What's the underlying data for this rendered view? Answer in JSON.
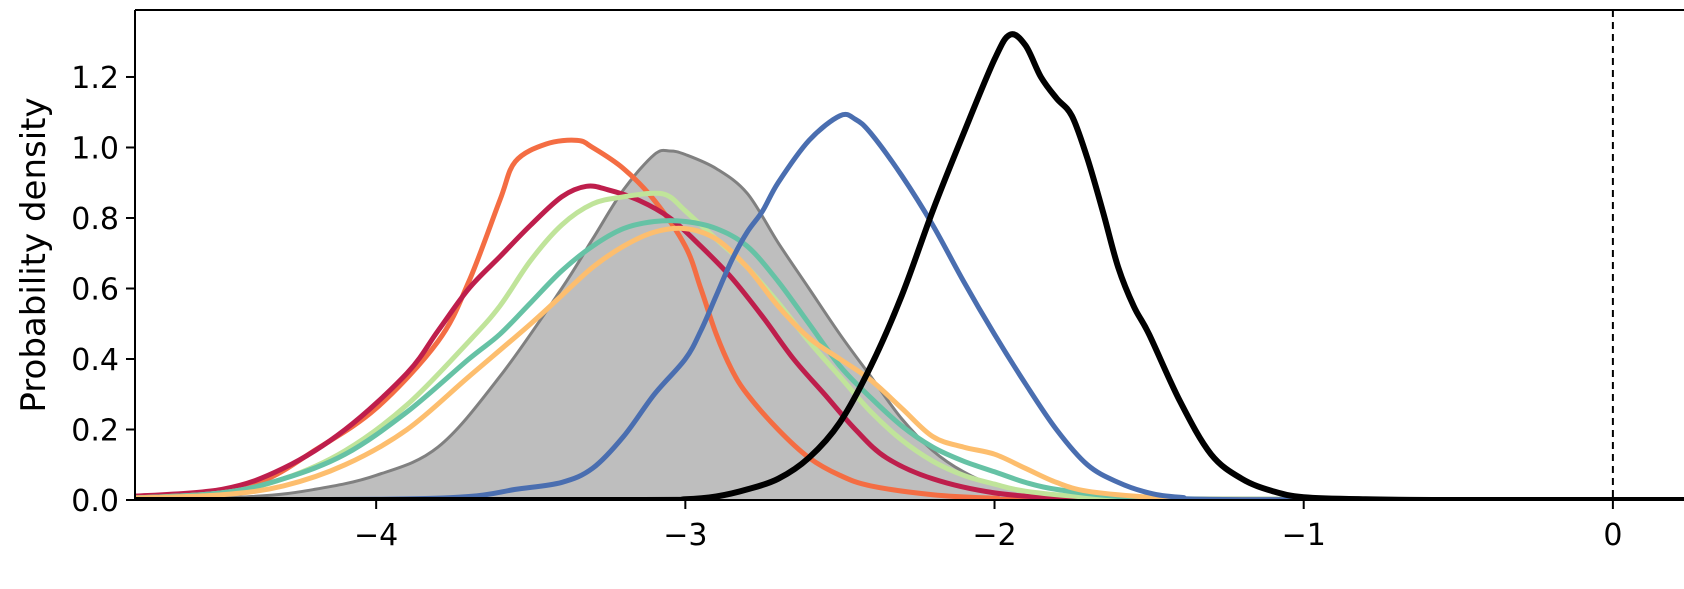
{
  "chart_data": {
    "type": "line",
    "title": "",
    "xlabel": "",
    "ylabel": "Probability density",
    "xlim": [
      -4.78,
      0.23
    ],
    "ylim": [
      0.0,
      1.39
    ],
    "x_ticks": [
      -4,
      -3,
      -2,
      -1,
      0
    ],
    "x_tick_labels": [
      "−4",
      "−3",
      "−2",
      "−1",
      "0"
    ],
    "y_ticks": [
      0.0,
      0.2,
      0.4,
      0.6,
      0.8,
      1.0,
      1.2
    ],
    "y_tick_labels": [
      "0.0",
      "0.2",
      "0.4",
      "0.6",
      "0.8",
      "1.0",
      "1.2"
    ],
    "grid": false,
    "legend": "none",
    "reference_line": {
      "x": 0,
      "style": "dashed",
      "color": "#000000"
    },
    "series": [
      {
        "style": "filled-area",
        "color": "#808080",
        "fill": "#bebebe",
        "points": [
          [
            -4.8,
            0.0
          ],
          [
            -4.4,
            0.01
          ],
          [
            -4.2,
            0.03
          ],
          [
            -4.0,
            0.07
          ],
          [
            -3.8,
            0.15
          ],
          [
            -3.6,
            0.35
          ],
          [
            -3.4,
            0.6
          ],
          [
            -3.3,
            0.74
          ],
          [
            -3.2,
            0.88
          ],
          [
            -3.1,
            0.98
          ],
          [
            -3.05,
            0.99
          ],
          [
            -3.0,
            0.98
          ],
          [
            -2.9,
            0.94
          ],
          [
            -2.8,
            0.87
          ],
          [
            -2.7,
            0.73
          ],
          [
            -2.6,
            0.6
          ],
          [
            -2.5,
            0.47
          ],
          [
            -2.4,
            0.35
          ],
          [
            -2.3,
            0.23
          ],
          [
            -2.2,
            0.14
          ],
          [
            -2.1,
            0.08
          ],
          [
            -2.0,
            0.045
          ],
          [
            -1.8,
            0.015
          ],
          [
            -1.5,
            0.002
          ],
          [
            0.23,
            0.0
          ]
        ]
      },
      {
        "style": "line",
        "color": "#f46d43",
        "points": [
          [
            -4.8,
            0.01
          ],
          [
            -4.5,
            0.02
          ],
          [
            -4.35,
            0.06
          ],
          [
            -4.2,
            0.14
          ],
          [
            -4.0,
            0.26
          ],
          [
            -3.8,
            0.45
          ],
          [
            -3.7,
            0.62
          ],
          [
            -3.6,
            0.85
          ],
          [
            -3.55,
            0.96
          ],
          [
            -3.45,
            1.01
          ],
          [
            -3.35,
            1.02
          ],
          [
            -3.3,
            1.0
          ],
          [
            -3.2,
            0.94
          ],
          [
            -3.1,
            0.85
          ],
          [
            -3.0,
            0.72
          ],
          [
            -2.95,
            0.6
          ],
          [
            -2.9,
            0.47
          ],
          [
            -2.85,
            0.37
          ],
          [
            -2.8,
            0.3
          ],
          [
            -2.7,
            0.2
          ],
          [
            -2.6,
            0.12
          ],
          [
            -2.5,
            0.07
          ],
          [
            -2.4,
            0.04
          ],
          [
            -2.2,
            0.015
          ],
          [
            -2.0,
            0.005
          ],
          [
            -1.8,
            0.001
          ],
          [
            0.23,
            0.0
          ]
        ]
      },
      {
        "style": "line",
        "color": "#be1e4c",
        "points": [
          [
            -4.8,
            0.01
          ],
          [
            -4.5,
            0.03
          ],
          [
            -4.3,
            0.09
          ],
          [
            -4.1,
            0.2
          ],
          [
            -3.9,
            0.36
          ],
          [
            -3.8,
            0.48
          ],
          [
            -3.7,
            0.6
          ],
          [
            -3.6,
            0.69
          ],
          [
            -3.5,
            0.78
          ],
          [
            -3.4,
            0.86
          ],
          [
            -3.32,
            0.89
          ],
          [
            -3.25,
            0.88
          ],
          [
            -3.15,
            0.85
          ],
          [
            -3.05,
            0.8
          ],
          [
            -2.95,
            0.72
          ],
          [
            -2.85,
            0.63
          ],
          [
            -2.75,
            0.52
          ],
          [
            -2.65,
            0.4
          ],
          [
            -2.55,
            0.3
          ],
          [
            -2.45,
            0.2
          ],
          [
            -2.35,
            0.12
          ],
          [
            -2.2,
            0.06
          ],
          [
            -2.0,
            0.02
          ],
          [
            -1.8,
            0.006
          ],
          [
            -1.6,
            0.001
          ],
          [
            0.23,
            0.0
          ]
        ]
      },
      {
        "style": "line",
        "color": "#c0e49a",
        "points": [
          [
            -4.8,
            0.005
          ],
          [
            -4.5,
            0.02
          ],
          [
            -4.3,
            0.06
          ],
          [
            -4.1,
            0.14
          ],
          [
            -3.9,
            0.27
          ],
          [
            -3.7,
            0.45
          ],
          [
            -3.6,
            0.55
          ],
          [
            -3.5,
            0.68
          ],
          [
            -3.4,
            0.78
          ],
          [
            -3.3,
            0.84
          ],
          [
            -3.2,
            0.86
          ],
          [
            -3.1,
            0.87
          ],
          [
            -3.05,
            0.86
          ],
          [
            -3.0,
            0.82
          ],
          [
            -2.9,
            0.74
          ],
          [
            -2.8,
            0.66
          ],
          [
            -2.7,
            0.56
          ],
          [
            -2.6,
            0.45
          ],
          [
            -2.5,
            0.35
          ],
          [
            -2.4,
            0.25
          ],
          [
            -2.3,
            0.17
          ],
          [
            -2.2,
            0.11
          ],
          [
            -2.1,
            0.07
          ],
          [
            -2.0,
            0.045
          ],
          [
            -1.9,
            0.025
          ],
          [
            -1.7,
            0.008
          ],
          [
            -1.5,
            0.002
          ],
          [
            0.23,
            0.0
          ]
        ]
      },
      {
        "style": "line",
        "color": "#66c2a5",
        "points": [
          [
            -4.8,
            0.005
          ],
          [
            -4.5,
            0.02
          ],
          [
            -4.3,
            0.06
          ],
          [
            -4.1,
            0.13
          ],
          [
            -3.9,
            0.25
          ],
          [
            -3.7,
            0.4
          ],
          [
            -3.6,
            0.47
          ],
          [
            -3.5,
            0.56
          ],
          [
            -3.4,
            0.65
          ],
          [
            -3.3,
            0.72
          ],
          [
            -3.2,
            0.77
          ],
          [
            -3.1,
            0.79
          ],
          [
            -3.0,
            0.79
          ],
          [
            -2.9,
            0.77
          ],
          [
            -2.8,
            0.72
          ],
          [
            -2.7,
            0.62
          ],
          [
            -2.6,
            0.5
          ],
          [
            -2.5,
            0.38
          ],
          [
            -2.4,
            0.29
          ],
          [
            -2.3,
            0.21
          ],
          [
            -2.2,
            0.15
          ],
          [
            -2.1,
            0.11
          ],
          [
            -2.0,
            0.08
          ],
          [
            -1.9,
            0.05
          ],
          [
            -1.8,
            0.03
          ],
          [
            -1.6,
            0.01
          ],
          [
            -1.4,
            0.003
          ],
          [
            0.23,
            0.0
          ]
        ]
      },
      {
        "style": "line",
        "color": "#fdbe6e",
        "points": [
          [
            -4.8,
            0.005
          ],
          [
            -4.5,
            0.015
          ],
          [
            -4.3,
            0.04
          ],
          [
            -4.1,
            0.1
          ],
          [
            -3.9,
            0.2
          ],
          [
            -3.7,
            0.35
          ],
          [
            -3.5,
            0.5
          ],
          [
            -3.4,
            0.58
          ],
          [
            -3.3,
            0.66
          ],
          [
            -3.2,
            0.72
          ],
          [
            -3.1,
            0.76
          ],
          [
            -3.0,
            0.77
          ],
          [
            -2.9,
            0.74
          ],
          [
            -2.8,
            0.66
          ],
          [
            -2.7,
            0.55
          ],
          [
            -2.6,
            0.46
          ],
          [
            -2.5,
            0.4
          ],
          [
            -2.4,
            0.34
          ],
          [
            -2.3,
            0.26
          ],
          [
            -2.2,
            0.18
          ],
          [
            -2.1,
            0.15
          ],
          [
            -2.0,
            0.13
          ],
          [
            -1.9,
            0.09
          ],
          [
            -1.8,
            0.05
          ],
          [
            -1.7,
            0.025
          ],
          [
            -1.5,
            0.008
          ],
          [
            -1.3,
            0.002
          ],
          [
            0.23,
            0.0
          ]
        ]
      },
      {
        "style": "line",
        "color": "#4a6eb0",
        "points": [
          [
            -4.8,
            0.0
          ],
          [
            -4.0,
            0.002
          ],
          [
            -3.7,
            0.01
          ],
          [
            -3.55,
            0.03
          ],
          [
            -3.4,
            0.05
          ],
          [
            -3.3,
            0.09
          ],
          [
            -3.2,
            0.18
          ],
          [
            -3.1,
            0.3
          ],
          [
            -3.0,
            0.4
          ],
          [
            -2.95,
            0.48
          ],
          [
            -2.9,
            0.58
          ],
          [
            -2.85,
            0.68
          ],
          [
            -2.8,
            0.76
          ],
          [
            -2.75,
            0.82
          ],
          [
            -2.7,
            0.9
          ],
          [
            -2.6,
            1.02
          ],
          [
            -2.5,
            1.09
          ],
          [
            -2.45,
            1.08
          ],
          [
            -2.4,
            1.04
          ],
          [
            -2.3,
            0.92
          ],
          [
            -2.2,
            0.78
          ],
          [
            -2.1,
            0.62
          ],
          [
            -2.0,
            0.47
          ],
          [
            -1.9,
            0.33
          ],
          [
            -1.8,
            0.2
          ],
          [
            -1.7,
            0.1
          ],
          [
            -1.6,
            0.05
          ],
          [
            -1.5,
            0.02
          ],
          [
            -1.4,
            0.008
          ],
          [
            -1.2,
            0.001
          ],
          [
            0.23,
            0.0
          ]
        ]
      },
      {
        "style": "line",
        "color": "#000000",
        "points": [
          [
            -4.8,
            0.0
          ],
          [
            -3.2,
            0.0
          ],
          [
            -3.0,
            0.002
          ],
          [
            -2.9,
            0.01
          ],
          [
            -2.8,
            0.03
          ],
          [
            -2.7,
            0.06
          ],
          [
            -2.6,
            0.12
          ],
          [
            -2.5,
            0.22
          ],
          [
            -2.4,
            0.38
          ],
          [
            -2.3,
            0.58
          ],
          [
            -2.2,
            0.82
          ],
          [
            -2.1,
            1.04
          ],
          [
            -2.0,
            1.25
          ],
          [
            -1.95,
            1.32
          ],
          [
            -1.9,
            1.29
          ],
          [
            -1.85,
            1.2
          ],
          [
            -1.8,
            1.14
          ],
          [
            -1.75,
            1.09
          ],
          [
            -1.7,
            0.97
          ],
          [
            -1.65,
            0.82
          ],
          [
            -1.6,
            0.66
          ],
          [
            -1.55,
            0.55
          ],
          [
            -1.5,
            0.47
          ],
          [
            -1.4,
            0.28
          ],
          [
            -1.3,
            0.13
          ],
          [
            -1.2,
            0.06
          ],
          [
            -1.1,
            0.025
          ],
          [
            -1.0,
            0.008
          ],
          [
            -0.8,
            0.002
          ],
          [
            -0.5,
            0.0
          ],
          [
            0.23,
            0.0
          ]
        ]
      }
    ]
  }
}
